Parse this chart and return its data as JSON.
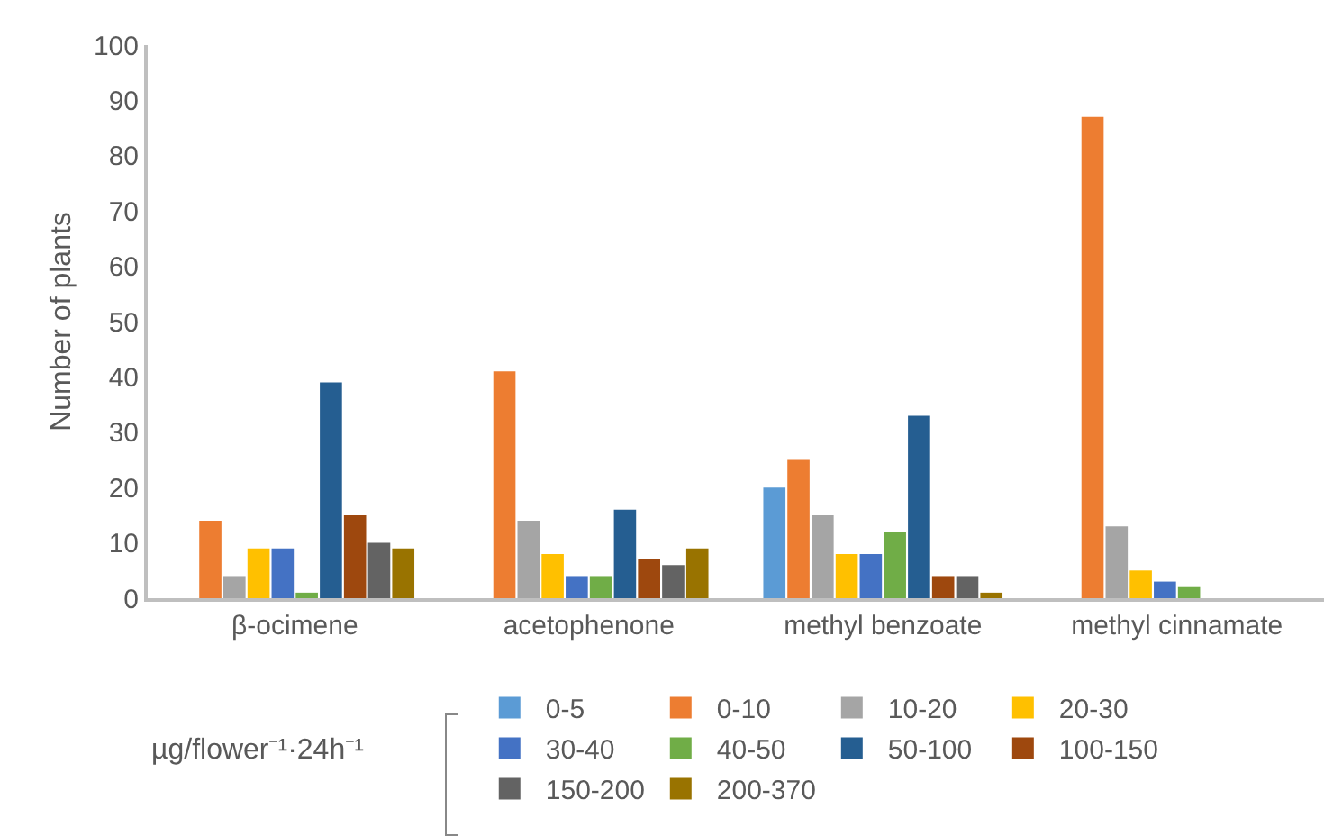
{
  "chart_data": {
    "type": "bar",
    "ylabel": "Number of plants",
    "legend_title": "µg/flower⁻¹·24h⁻¹",
    "categories": [
      "β-ocimene",
      "acetophenone",
      "methyl benzoate",
      "methyl cinnamate"
    ],
    "series": [
      {
        "name": "0-5",
        "color": "#5b9bd5",
        "values": [
          0,
          0,
          20,
          0
        ]
      },
      {
        "name": "0-10",
        "color": "#ed7d31",
        "values": [
          14,
          41,
          25,
          87
        ]
      },
      {
        "name": "10-20",
        "color": "#a5a5a5",
        "values": [
          4,
          14,
          15,
          13
        ]
      },
      {
        "name": "20-30",
        "color": "#ffc000",
        "values": [
          9,
          8,
          8,
          5
        ]
      },
      {
        "name": "30-40",
        "color": "#4472c4",
        "values": [
          9,
          4,
          8,
          3
        ]
      },
      {
        "name": "40-50",
        "color": "#70ad47",
        "values": [
          1,
          4,
          12,
          2
        ]
      },
      {
        "name": "50-100",
        "color": "#255e91",
        "values": [
          39,
          16,
          33,
          0
        ]
      },
      {
        "name": "100-150",
        "color": "#9e480e",
        "values": [
          15,
          7,
          4,
          0
        ]
      },
      {
        "name": "150-200",
        "color": "#636363",
        "values": [
          10,
          6,
          4,
          0
        ]
      },
      {
        "name": "200-370",
        "color": "#997300",
        "values": [
          9,
          9,
          1,
          0
        ]
      }
    ],
    "ylim": [
      0,
      100
    ],
    "yticks": [
      0,
      10,
      20,
      30,
      40,
      50,
      60,
      70,
      80,
      90,
      100
    ],
    "grid": false,
    "legend": "bottom"
  }
}
